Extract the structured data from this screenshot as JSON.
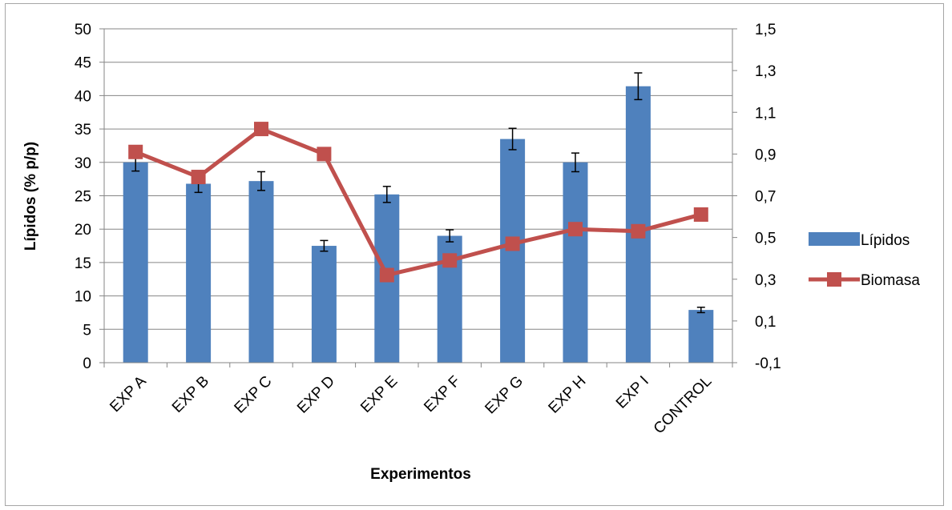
{
  "chart_data": {
    "type": "bar",
    "categories": [
      "EXP A",
      "EXP B",
      "EXP C",
      "EXP D",
      "EXP E",
      "EXP F",
      "EXP G",
      "EXP H",
      "EXP I",
      "CONTROL"
    ],
    "xlabel": "Experimentos",
    "ylabel": "Lípidos (% p/p)",
    "ylim": [
      0,
      50
    ],
    "y_ticks": [
      "0",
      "5",
      "10",
      "15",
      "20",
      "25",
      "30",
      "35",
      "40",
      "45",
      "50"
    ],
    "y2lim": [
      -0.1,
      1.5
    ],
    "y2_ticks": [
      "-0,1",
      "0,1",
      "0,3",
      "0,5",
      "0,7",
      "0,9",
      "1,1",
      "1,3",
      "1,5"
    ],
    "grid": true,
    "legend_position": "right",
    "series": [
      {
        "name": "Lípidos",
        "type": "bar",
        "axis": "left",
        "color": "#4f81bd",
        "values": [
          30.0,
          26.8,
          27.2,
          17.5,
          25.2,
          19.0,
          33.5,
          30.0,
          41.4,
          7.9
        ],
        "error": [
          1.3,
          1.3,
          1.4,
          0.8,
          1.2,
          0.9,
          1.6,
          1.4,
          2.0,
          0.4
        ]
      },
      {
        "name": "Biomasa",
        "type": "line",
        "axis": "right",
        "color": "#c0504d",
        "values": [
          0.91,
          0.79,
          1.02,
          0.9,
          0.32,
          0.39,
          0.47,
          0.54,
          0.53,
          0.61
        ]
      }
    ]
  }
}
